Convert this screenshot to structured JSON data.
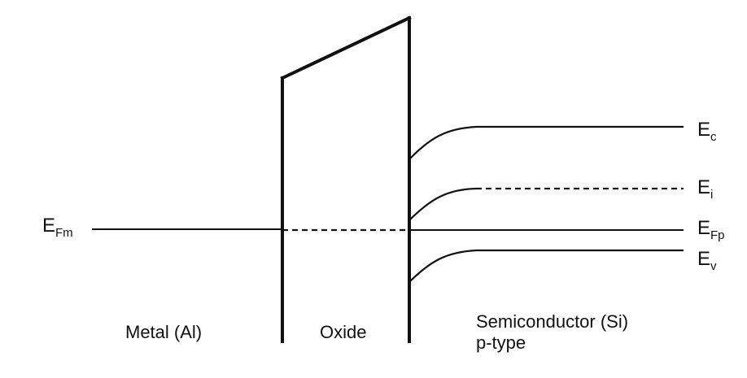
{
  "colors": {
    "background": "#ffffff",
    "line": "#111111"
  },
  "regions": {
    "metal": "Metal (Al)",
    "oxide": "Oxide",
    "semiconductor_line1": "Semiconductor (Si)",
    "semiconductor_line2": "p-type"
  },
  "levels": {
    "metal_fermi": {
      "symbol": "E",
      "subscript": "Fm"
    },
    "conduction_band": {
      "symbol": "E",
      "subscript": "c"
    },
    "intrinsic": {
      "symbol": "E",
      "subscript": "i"
    },
    "semiconductor_fermi": {
      "symbol": "E",
      "subscript": "Fp"
    },
    "valence_band": {
      "symbol": "E",
      "subscript": "v"
    }
  }
}
